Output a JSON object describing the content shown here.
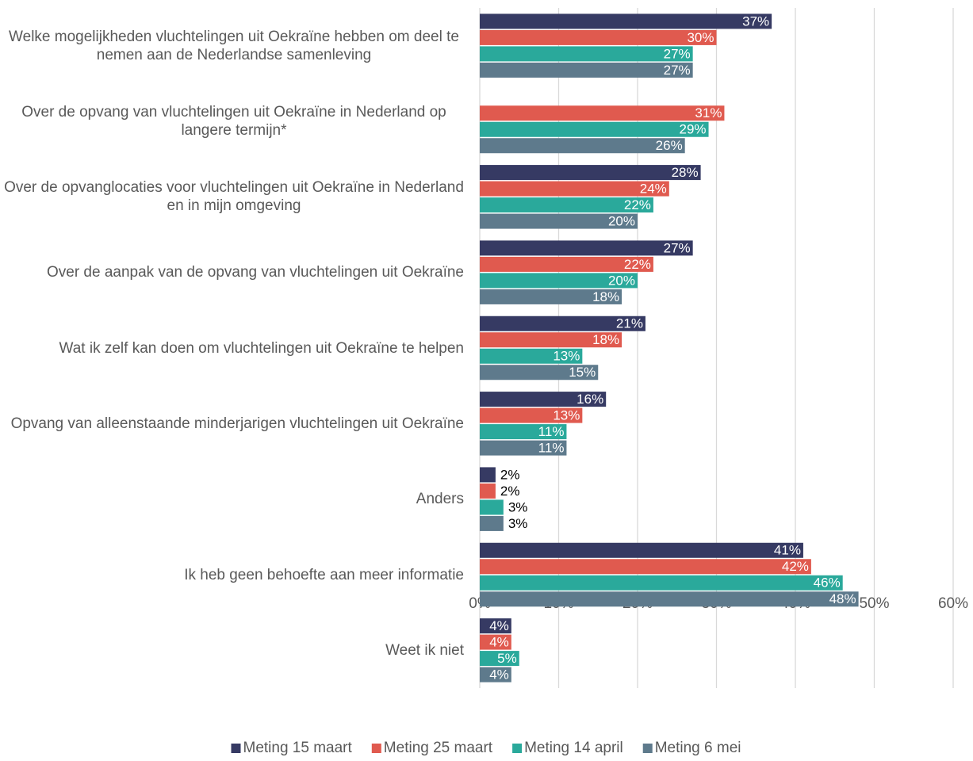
{
  "chart_data": {
    "type": "bar",
    "orientation": "horizontal",
    "categories": [
      "Welke mogelijkheden vluchtelingen uit Oekraïne hebben om deel te nemen aan de Nederlandse samenleving",
      "Over de opvang van vluchtelingen uit Oekraïne in Nederland op langere termijn*",
      "Over de opvanglocaties voor vluchtelingen uit Oekraïne in Nederland en in mijn omgeving",
      "Over de aanpak van de opvang van vluchtelingen uit Oekraïne",
      "Wat ik zelf kan doen om vluchtelingen uit Oekraïne te helpen",
      "Opvang van alleenstaande minderjarigen vluchtelingen uit Oekraïne",
      "Anders",
      "Ik heb geen behoefte aan meer informatie",
      "Weet ik niet"
    ],
    "series": [
      {
        "name": "Meting 15 maart",
        "color": "#363a63",
        "values": [
          37,
          null,
          28,
          27,
          21,
          16,
          2,
          41,
          4
        ],
        "value_labels": [
          "37%",
          null,
          "28%",
          "27%",
          "21%",
          "16%",
          "2%",
          "41%",
          "4%"
        ]
      },
      {
        "name": "Meting 25 maart",
        "color": "#e05a4f",
        "values": [
          30,
          31,
          24,
          22,
          18,
          13,
          2,
          42,
          4
        ],
        "value_labels": [
          "30%",
          "31%",
          "24%",
          "22%",
          "18%",
          "13%",
          "2%",
          "42%",
          "4%"
        ]
      },
      {
        "name": "Meting 14 april",
        "color": "#2aa99b",
        "values": [
          27,
          29,
          22,
          20,
          13,
          11,
          3,
          46,
          5
        ],
        "value_labels": [
          "27%",
          "29%",
          "22%",
          "20%",
          "13%",
          "11%",
          "3%",
          "46%",
          "5%"
        ]
      },
      {
        "name": "Meting 6 mei",
        "color": "#5e7a8c",
        "values": [
          27,
          26,
          20,
          18,
          15,
          11,
          3,
          48,
          4
        ],
        "value_labels": [
          "27%",
          "26%",
          "20%",
          "18%",
          "15%",
          "11%",
          "3%",
          "48%",
          "4%"
        ]
      }
    ],
    "xlim": [
      0,
      60
    ],
    "xticks": [
      {
        "value": 0,
        "label": "0%"
      },
      {
        "value": 10,
        "label": "10%"
      },
      {
        "value": 20,
        "label": "20%"
      },
      {
        "value": 30,
        "label": "30%"
      },
      {
        "value": 40,
        "label": "40%"
      },
      {
        "value": 50,
        "label": "50%"
      },
      {
        "value": 60,
        "label": "60%"
      }
    ],
    "grid": true,
    "legend": "bottom"
  }
}
